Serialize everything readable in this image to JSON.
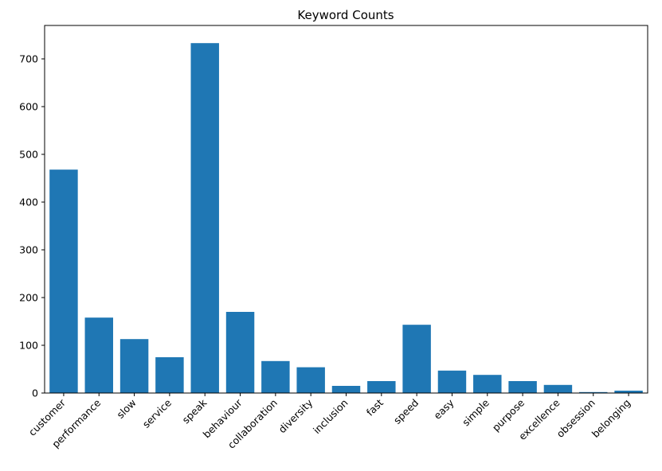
{
  "chart_data": {
    "type": "bar",
    "title": "Keyword Counts",
    "xlabel": "",
    "ylabel": "",
    "categories": [
      "customer",
      "performance",
      "slow",
      "service",
      "speak",
      "behaviour",
      "collaboration",
      "diversity",
      "inclusion",
      "fast",
      "speed",
      "easy",
      "simple",
      "purpose",
      "excellence",
      "obsession",
      "belonging"
    ],
    "values": [
      468,
      158,
      113,
      75,
      733,
      170,
      67,
      54,
      15,
      25,
      143,
      47,
      38,
      25,
      17,
      2,
      5
    ],
    "ylim": [
      0,
      770
    ],
    "yticks": [
      0,
      100,
      200,
      300,
      400,
      500,
      600,
      700
    ],
    "bar_color": "#1f77b4",
    "grid": false,
    "legend": "none"
  }
}
